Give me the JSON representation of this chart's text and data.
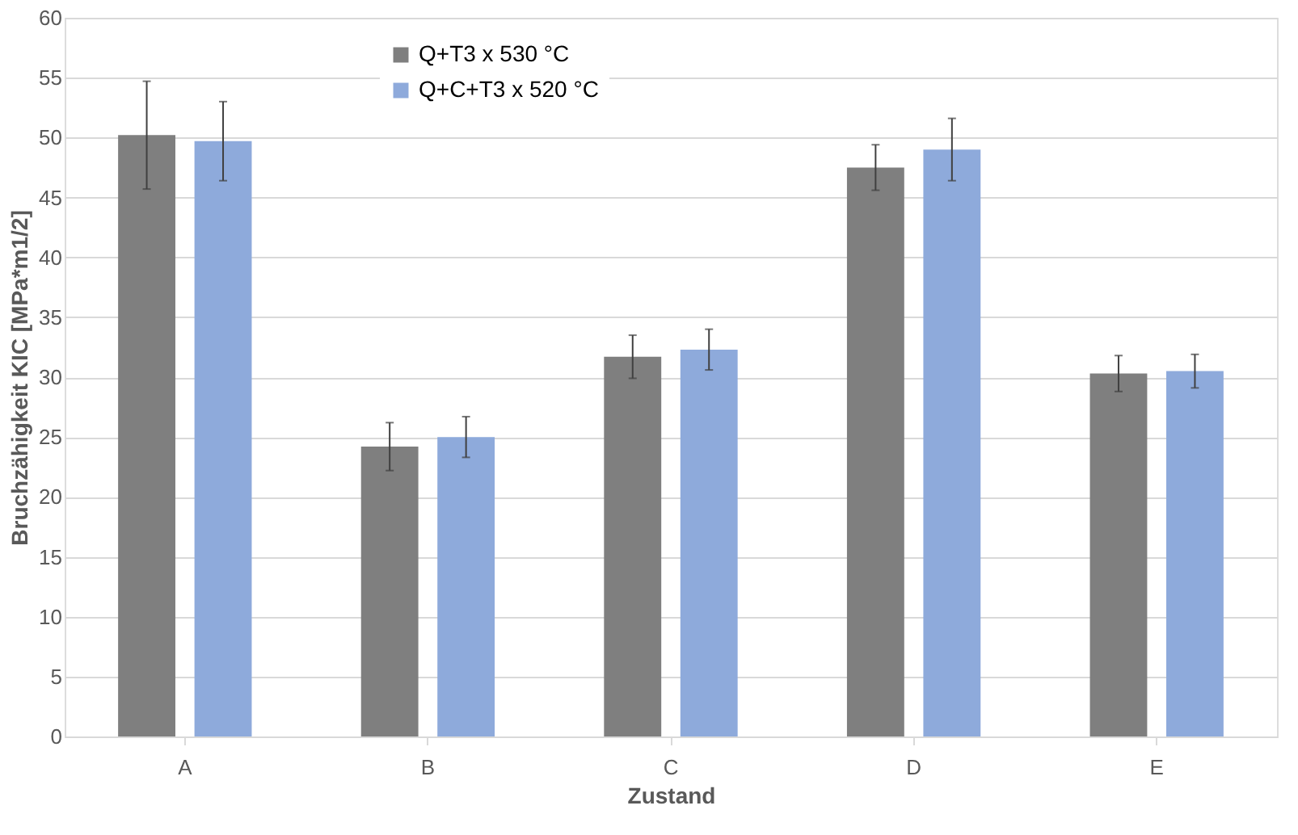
{
  "chart_data": {
    "type": "bar",
    "xlabel": "Zustand",
    "ylabel": "Bruchzähigkeit KIC [MPa*m1/2]",
    "categories": [
      "A",
      "B",
      "C",
      "D",
      "E"
    ],
    "series": [
      {
        "name": "Q+T3 x 530 °C",
        "color": "#7f7f7f",
        "values": [
          50.2,
          24.2,
          31.7,
          47.5,
          30.3
        ],
        "errors": [
          4.5,
          2.0,
          1.8,
          1.9,
          1.5
        ]
      },
      {
        "name": "Q+C+T3 x 520 °C",
        "color": "#8eaadb",
        "values": [
          49.7,
          25.0,
          32.3,
          49.0,
          30.5
        ],
        "errors": [
          3.3,
          1.7,
          1.7,
          2.6,
          1.4
        ]
      }
    ],
    "ylim": [
      0,
      60
    ],
    "yticks": [
      0,
      5,
      10,
      15,
      20,
      25,
      30,
      35,
      40,
      45,
      50,
      55,
      60
    ],
    "grid": "y",
    "legend": "top"
  }
}
